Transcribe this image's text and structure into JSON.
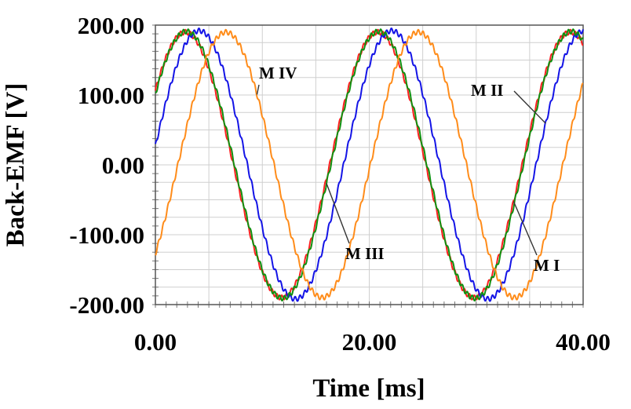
{
  "chart_data": {
    "type": "line",
    "title": "",
    "xlabel": "Time [ms]",
    "ylabel": "Back-EMF [V]",
    "xlim": [
      0,
      40
    ],
    "ylim": [
      -200,
      200
    ],
    "x_ticks": [
      "0.00",
      "20.00",
      "40.00"
    ],
    "x_tick_values": [
      0,
      20,
      40
    ],
    "y_ticks": [
      "200.00",
      "100.00",
      "0.00",
      "-100.00",
      "-200.00"
    ],
    "y_tick_values": [
      200,
      100,
      0,
      -100,
      -200
    ],
    "grid": true,
    "period_ms": 18,
    "series": [
      {
        "name": "M I",
        "label": "M I",
        "color": "#ff2020",
        "amplitude": 190,
        "peak_times_ms": [
          2.8,
          20.8,
          38.8
        ],
        "trough_times_ms": [
          11.8,
          29.8
        ]
      },
      {
        "name": "M II",
        "label": "M II",
        "color": "#1414e6",
        "amplitude": 192,
        "peak_times_ms": [
          4.1,
          22.1,
          40.1
        ],
        "trough_times_ms": [
          13.1,
          31.1
        ]
      },
      {
        "name": "M III",
        "label": "M III",
        "color": "#109010",
        "amplitude": 191,
        "peak_times_ms": [
          2.9,
          20.9,
          38.9
        ],
        "trough_times_ms": [
          11.9,
          29.9
        ]
      },
      {
        "name": "M IV",
        "label": "M IV",
        "color": "#ff8c1a",
        "amplitude": 190,
        "peak_times_ms": [
          6.6,
          24.6
        ],
        "trough_times_ms": [
          15.6,
          33.6
        ]
      }
    ],
    "annotations": [
      {
        "text": "M IV",
        "series": "M IV",
        "at_x_ms": 9.5
      },
      {
        "text": "M II",
        "series": "M II",
        "at_x_ms": 36.5
      },
      {
        "text": "M III",
        "series": "M III",
        "at_x_ms": 16.0
      },
      {
        "text": "M I",
        "series": "M I",
        "at_x_ms": 33.5
      }
    ]
  }
}
